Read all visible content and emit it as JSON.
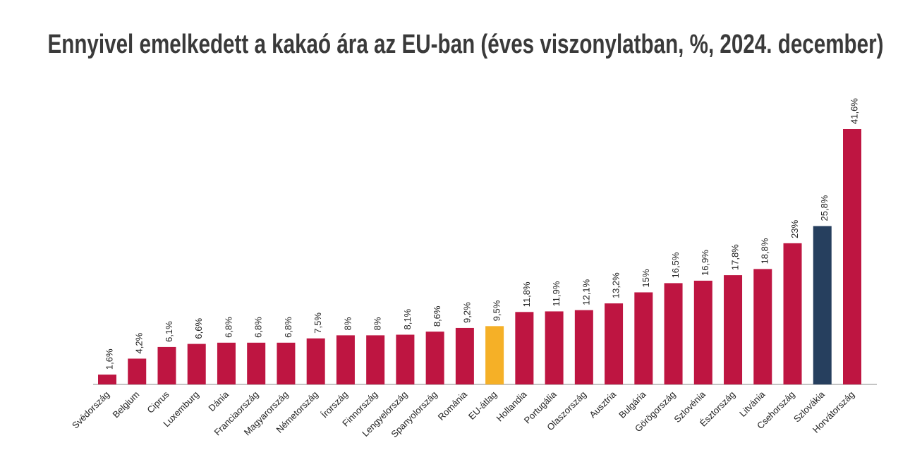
{
  "chart_data": {
    "type": "bar",
    "title": "Ennyivel emelkedett a kakaó ára az EU-ban (éves viszonylatban, %, 2024. december)",
    "categories": [
      "Svédország",
      "Belgium",
      "Ciprus",
      "Luxemburg",
      "Dánia",
      "Franciaország",
      "Magyarország",
      "Németország",
      "Írország",
      "Finnország",
      "Lengyelország",
      "Spanyolország",
      "Románia",
      "EU-átlag",
      "Hollandia",
      "Portugália",
      "Olaszország",
      "Ausztria",
      "Bulgária",
      "Görögország",
      "Szlovénia",
      "Észtország",
      "Litvánia",
      "Csehország",
      "Szlovákia",
      "Horvátország"
    ],
    "values": [
      1.6,
      4.2,
      6.1,
      6.6,
      6.8,
      6.8,
      6.8,
      7.5,
      8,
      8,
      8.1,
      8.6,
      9.2,
      9.5,
      11.8,
      11.9,
      12.1,
      13.2,
      15,
      16.5,
      16.9,
      17.8,
      18.8,
      23,
      25.8,
      41.6
    ],
    "value_labels": [
      "1,6%",
      "4,2%",
      "6,1%",
      "6,6%",
      "6,8%",
      "6,8%",
      "6,8%",
      "7,5%",
      "8%",
      "8%",
      "8,1%",
      "8,6%",
      "9,2%",
      "9,5%",
      "11,8%",
      "11,9%",
      "12,1%",
      "13,2%",
      "15%",
      "16,5%",
      "16,9%",
      "17,8%",
      "18,8%",
      "23%",
      "25,8%",
      "41,6%"
    ],
    "colors": [
      "#be1541",
      "#be1541",
      "#be1541",
      "#be1541",
      "#be1541",
      "#be1541",
      "#be1541",
      "#be1541",
      "#be1541",
      "#be1541",
      "#be1541",
      "#be1541",
      "#be1541",
      "#f5b027",
      "#be1541",
      "#be1541",
      "#be1541",
      "#be1541",
      "#be1541",
      "#be1541",
      "#be1541",
      "#be1541",
      "#be1541",
      "#be1541",
      "#263f5e",
      "#be1541"
    ]
  }
}
